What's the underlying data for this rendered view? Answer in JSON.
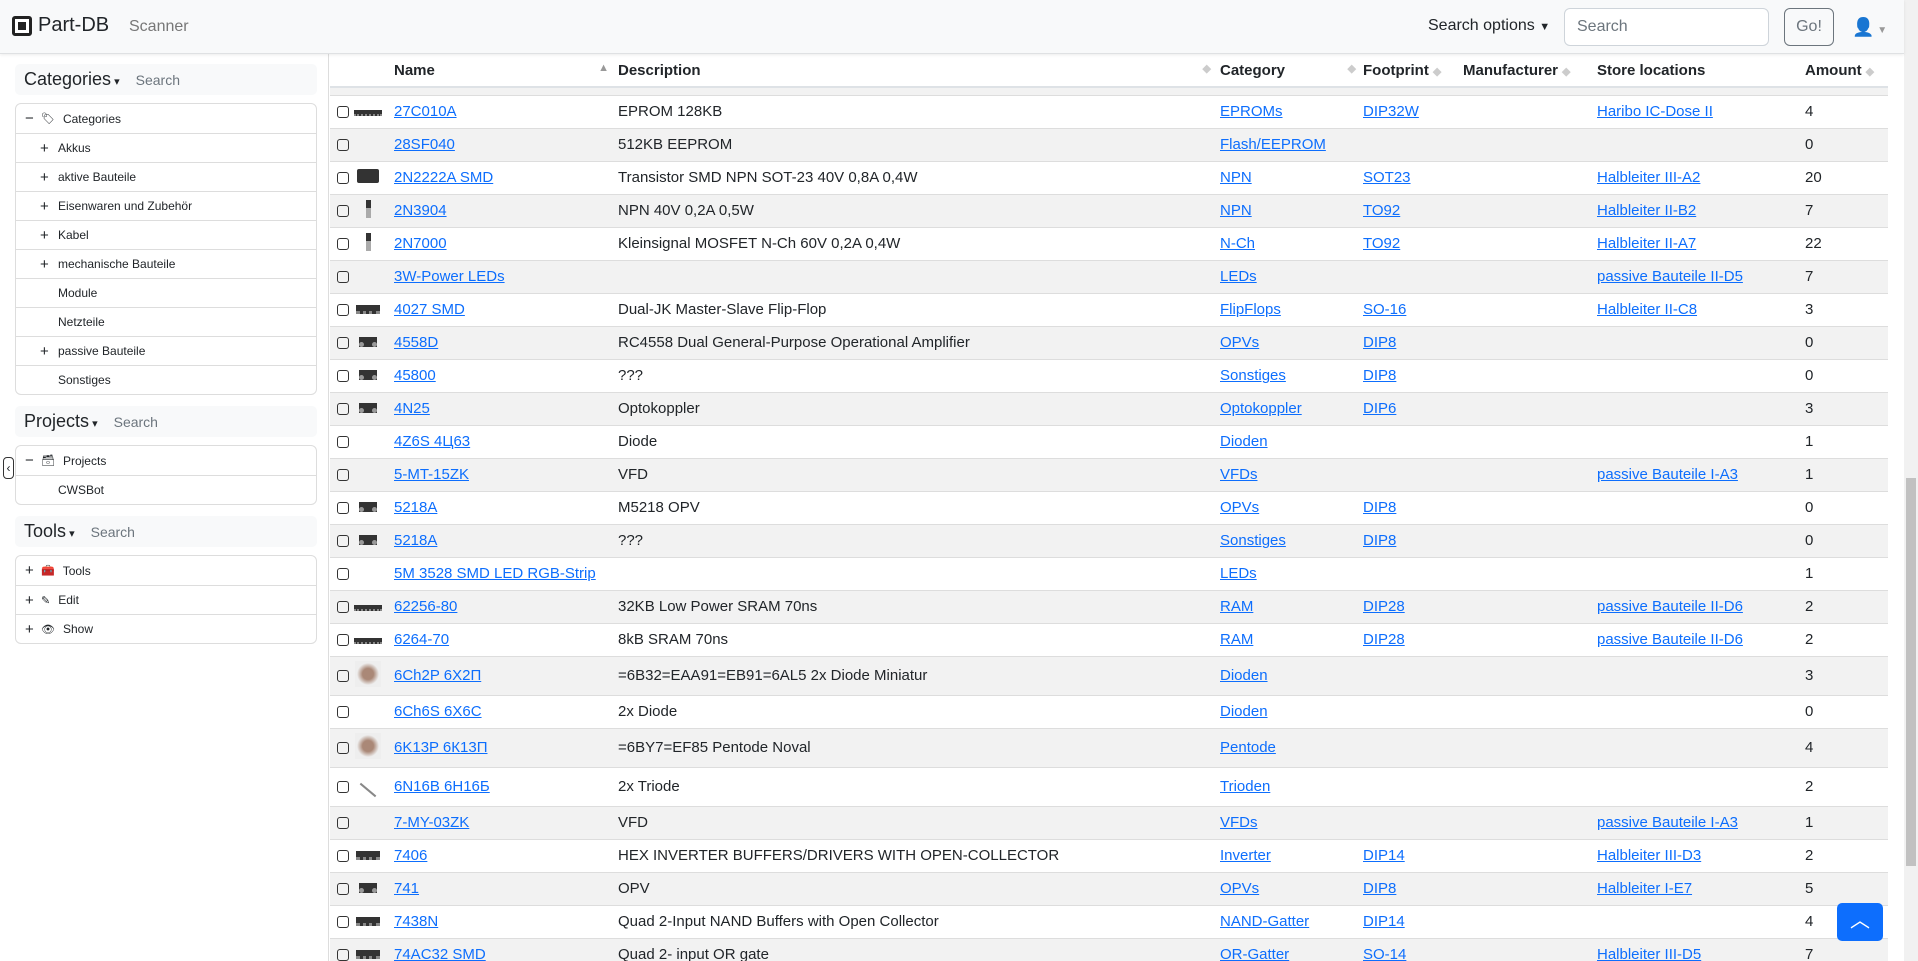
{
  "navbar": {
    "brand": "Part-DB",
    "scanner": "Scanner",
    "search_options": "Search options",
    "search_placeholder": "Search",
    "go": "Go!"
  },
  "sidebar": {
    "categories": {
      "title": "Categories",
      "search_placeholder": "Search",
      "items": [
        {
          "label": "Categories",
          "level": 0,
          "toggle": "−"
        },
        {
          "label": "Akkus",
          "level": 1,
          "toggle": "+"
        },
        {
          "label": "aktive Bauteile",
          "level": 1,
          "toggle": "+"
        },
        {
          "label": "Eisenwaren und Zubehör",
          "level": 1,
          "toggle": "+"
        },
        {
          "label": "Kabel",
          "level": 1,
          "toggle": "+"
        },
        {
          "label": "mechanische Bauteile",
          "level": 1,
          "toggle": "+"
        },
        {
          "label": "Module",
          "level": 1,
          "toggle": ""
        },
        {
          "label": "Netzteile",
          "level": 1,
          "toggle": ""
        },
        {
          "label": "passive Bauteile",
          "level": 1,
          "toggle": "+"
        },
        {
          "label": "Sonstiges",
          "level": 1,
          "toggle": ""
        }
      ]
    },
    "projects": {
      "title": "Projects",
      "search_placeholder": "Search",
      "items": [
        {
          "label": "Projects",
          "level": 0,
          "toggle": "−"
        },
        {
          "label": "CWSBot",
          "level": 1,
          "toggle": ""
        }
      ]
    },
    "tools": {
      "title": "Tools",
      "search_placeholder": "Search",
      "items": [
        {
          "label": "Tools",
          "level": 0,
          "toggle": "+"
        },
        {
          "label": "Edit",
          "level": 0,
          "toggle": "+"
        },
        {
          "label": "Show",
          "level": 0,
          "toggle": "+"
        }
      ]
    }
  },
  "table": {
    "columns": [
      "Name",
      "Description",
      "Category",
      "Footprint",
      "Manufacturer",
      "Store locations",
      "Amount"
    ],
    "rows": [
      {
        "img": "dip-long",
        "name": "27C010A",
        "desc": "EPROM 128KB",
        "cat": "EPROMs",
        "fp": "DIP32W",
        "mfr": "",
        "loc": "Haribo IC-Dose II",
        "amt": "4"
      },
      {
        "img": "",
        "name": "28SF040",
        "desc": "512KB EEPROM",
        "cat": "Flash/EEPROM",
        "fp": "",
        "mfr": "",
        "loc": "",
        "amt": "0"
      },
      {
        "img": "sot",
        "name": "2N2222A SMD",
        "desc": "Transistor SMD NPN SOT-23 40V 0,8A 0,4W",
        "cat": "NPN",
        "fp": "SOT23",
        "mfr": "",
        "loc": "Halbleiter III-A2",
        "amt": "20"
      },
      {
        "img": "to92",
        "name": "2N3904",
        "desc": "NPN 40V 0,2A 0,5W",
        "cat": "NPN",
        "fp": "TO92",
        "mfr": "",
        "loc": "Halbleiter II-B2",
        "amt": "7"
      },
      {
        "img": "to92",
        "name": "2N7000",
        "desc": "Kleinsignal MOSFET N-Ch 60V 0,2A 0,4W",
        "cat": "N-Ch",
        "fp": "TO92",
        "mfr": "",
        "loc": "Halbleiter II-A7",
        "amt": "22"
      },
      {
        "img": "",
        "name": "3W-Power LEDs",
        "desc": "",
        "cat": "LEDs",
        "fp": "",
        "mfr": "",
        "loc": "passive Bauteile II-D5",
        "amt": "7"
      },
      {
        "img": "dip",
        "name": "4027 SMD",
        "desc": "Dual-JK Master-Slave Flip-Flop",
        "cat": "FlipFlops",
        "fp": "SO-16",
        "mfr": "",
        "loc": "Halbleiter II-C8",
        "amt": "3"
      },
      {
        "img": "dip8",
        "name": "4558D",
        "desc": "RC4558 Dual General-Purpose Operational Amplifier",
        "cat": "OPVs",
        "fp": "DIP8",
        "mfr": "",
        "loc": "",
        "amt": "0"
      },
      {
        "img": "dip8",
        "name": "45800",
        "desc": "???",
        "cat": "Sonstiges",
        "fp": "DIP8",
        "mfr": "",
        "loc": "",
        "amt": "0"
      },
      {
        "img": "dip8",
        "name": "4N25",
        "desc": "Optokoppler",
        "cat": "Optokoppler",
        "fp": "DIP6",
        "mfr": "",
        "loc": "",
        "amt": "3"
      },
      {
        "img": "",
        "name": "4Z6S 4Ц63",
        "desc": "Diode",
        "cat": "Dioden",
        "fp": "",
        "mfr": "",
        "loc": "",
        "amt": "1"
      },
      {
        "img": "",
        "name": "5-MT-15ZK",
        "desc": "VFD",
        "cat": "VFDs",
        "fp": "",
        "mfr": "",
        "loc": "passive Bauteile I-A3",
        "amt": "1"
      },
      {
        "img": "dip8",
        "name": "5218A",
        "desc": "M5218 OPV",
        "cat": "OPVs",
        "fp": "DIP8",
        "mfr": "",
        "loc": "",
        "amt": "0"
      },
      {
        "img": "dip8",
        "name": "5218A",
        "desc": "???",
        "cat": "Sonstiges",
        "fp": "DIP8",
        "mfr": "",
        "loc": "",
        "amt": "0"
      },
      {
        "img": "",
        "name": "5M 3528 SMD LED RGB-Strip",
        "desc": "",
        "cat": "LEDs",
        "fp": "",
        "mfr": "",
        "loc": "",
        "amt": "1"
      },
      {
        "img": "dip-long",
        "name": "62256-80",
        "desc": "32KB Low Power SRAM 70ns",
        "cat": "RAM",
        "fp": "DIP28",
        "mfr": "",
        "loc": "passive Bauteile II-D6",
        "amt": "2"
      },
      {
        "img": "dip-long",
        "name": "6264-70",
        "desc": "8kB SRAM 70ns",
        "cat": "RAM",
        "fp": "DIP28",
        "mfr": "",
        "loc": "passive Bauteile II-D6",
        "amt": "2"
      },
      {
        "img": "tube",
        "name": "6Ch2P 6Х2П",
        "desc": "=6B32=EAA91=EB91=6AL5 2x Diode Miniatur",
        "cat": "Dioden",
        "fp": "",
        "mfr": "",
        "loc": "",
        "amt": "3"
      },
      {
        "img": "",
        "name": "6Ch6S 6Х6С",
        "desc": "2x Diode",
        "cat": "Dioden",
        "fp": "",
        "mfr": "",
        "loc": "",
        "amt": "0"
      },
      {
        "img": "tube",
        "name": "6K13P 6К13П",
        "desc": "=6BY7=EF85 Pentode Noval",
        "cat": "Pentode",
        "fp": "",
        "mfr": "",
        "loc": "",
        "amt": "4"
      },
      {
        "img": "wire",
        "name": "6N16B 6Н16Б",
        "desc": "2x Triode",
        "cat": "Trioden",
        "fp": "",
        "mfr": "",
        "loc": "",
        "amt": "2"
      },
      {
        "img": "",
        "name": "7-MY-03ZK",
        "desc": "VFD",
        "cat": "VFDs",
        "fp": "",
        "mfr": "",
        "loc": "passive Bauteile I-A3",
        "amt": "1"
      },
      {
        "img": "dip",
        "name": "7406",
        "desc": "HEX INVERTER BUFFERS/DRIVERS WITH OPEN-COLLECTOR",
        "cat": "Inverter",
        "fp": "DIP14",
        "mfr": "",
        "loc": "Halbleiter III-D3",
        "amt": "2"
      },
      {
        "img": "dip8",
        "name": "741",
        "desc": "OPV",
        "cat": "OPVs",
        "fp": "DIP8",
        "mfr": "",
        "loc": "Halbleiter I-E7",
        "amt": "5"
      },
      {
        "img": "dip",
        "name": "7438N",
        "desc": "Quad 2-Input NAND Buffers with Open Collector",
        "cat": "NAND-Gatter",
        "fp": "DIP14",
        "mfr": "",
        "loc": "",
        "amt": "4"
      },
      {
        "img": "dip",
        "name": "74AC32 SMD",
        "desc": "Quad 2- input OR gate",
        "cat": "OR-Gatter",
        "fp": "SO-14",
        "mfr": "",
        "loc": "Halbleiter III-D5",
        "amt": "7"
      }
    ]
  },
  "colors": {
    "link": "#0d6efd",
    "navbar_bg": "#f8f9fa",
    "stripe": "#f2f2f2",
    "accent": "#0d6efd"
  }
}
